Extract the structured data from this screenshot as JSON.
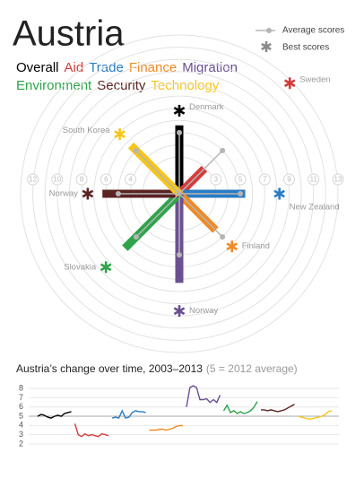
{
  "chart_data": [
    {
      "type": "radial",
      "title": "Austria",
      "categories": [
        "Overall",
        "Aid",
        "Trade",
        "Finance",
        "Migration",
        "Environment",
        "Security",
        "Technology"
      ],
      "colors": [
        "#000000",
        "#d63b3b",
        "#2a7cc4",
        "#f08a24",
        "#6b4f92",
        "#2ea44b",
        "#5b2323",
        "#f6c619"
      ],
      "values": [
        5.6,
        2.9,
        5.4,
        4.2,
        7.3,
        6.3,
        6.3,
        5.6
      ],
      "rlim": [
        0,
        13
      ],
      "rticks": [
        3,
        4,
        5,
        6,
        7,
        8,
        9,
        10,
        11,
        12,
        13
      ],
      "series": [
        {
          "name": "Average scores",
          "color": "#b5b5b5",
          "values": [
            5,
            5,
            5,
            5,
            5,
            5,
            5,
            5
          ]
        },
        {
          "name": "Best scores",
          "color": "#8a8a8a",
          "values": [
            6.8,
            12.8,
            8.2,
            6.1,
            9.6,
            8.5,
            7.5,
            6.9
          ],
          "countries": [
            "Denmark",
            "Sweden",
            "New Zealand",
            "Finland",
            "Norway",
            "Slovakia",
            "Norway",
            "South Korea"
          ]
        }
      ]
    },
    {
      "type": "line",
      "title": "Austria’s change over time, 2003–2013",
      "subtitle": "(5 = 2012 average)",
      "categories": [
        null,
        null,
        null,
        null,
        null,
        null,
        null,
        null,
        null,
        null,
        null
      ],
      "layout": "small-multiples",
      "ylim": [
        1.8,
        8.6
      ],
      "yticks": [
        2,
        3,
        4,
        5,
        6,
        7,
        8
      ],
      "reference": 5,
      "series": [
        {
          "color": "#000000",
          "values": [
            5.0,
            5.2,
            5.1,
            4.9,
            4.8,
            5.0,
            5.1,
            5.0,
            5.3,
            5.4,
            5.5
          ]
        },
        {
          "color": "#d63b3b",
          "values": [
            4.2,
            3.0,
            2.8,
            3.1,
            2.9,
            3.0,
            2.9,
            2.8,
            3.1,
            3.0,
            2.9
          ]
        },
        {
          "color": "#2a7cc4",
          "values": [
            4.8,
            4.9,
            4.8,
            5.6,
            4.8,
            4.9,
            5.4,
            5.6,
            5.5,
            5.5,
            5.4
          ]
        },
        {
          "color": "#f08a24",
          "values": [
            3.5,
            3.5,
            3.5,
            3.6,
            3.6,
            3.5,
            3.6,
            3.7,
            3.9,
            4.0,
            4.0
          ]
        },
        {
          "color": "#6b4f92",
          "values": [
            6.0,
            8.1,
            8.3,
            8.1,
            6.8,
            6.8,
            6.9,
            6.5,
            6.8,
            6.5,
            7.3
          ]
        },
        {
          "color": "#2ea44b",
          "values": [
            5.6,
            6.2,
            5.4,
            5.6,
            5.3,
            5.5,
            5.3,
            5.4,
            5.6,
            6.0,
            6.6
          ]
        },
        {
          "color": "#5b2323",
          "values": [
            5.7,
            5.7,
            5.6,
            5.7,
            5.6,
            5.5,
            5.6,
            5.7,
            5.9,
            6.1,
            6.3
          ]
        },
        {
          "color": "#f6c619",
          "values": [
            5.0,
            4.9,
            4.8,
            4.7,
            4.7,
            4.8,
            4.9,
            5.0,
            5.2,
            5.5,
            5.6
          ]
        }
      ]
    }
  ]
}
